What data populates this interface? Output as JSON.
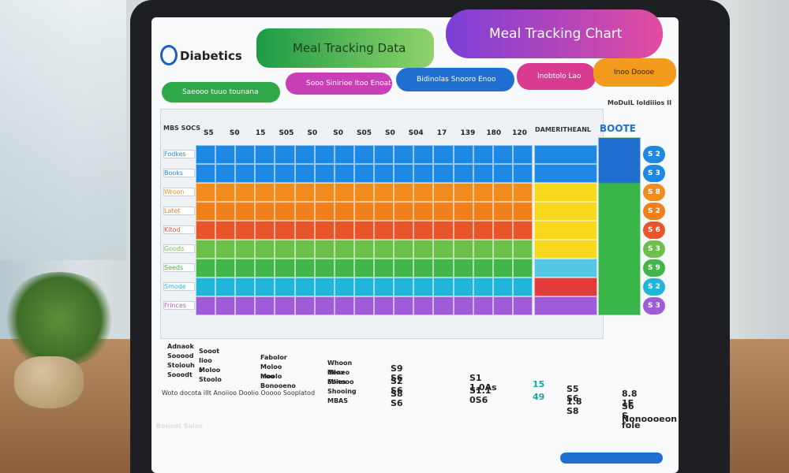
{
  "header": {
    "logo": "Diabetics",
    "tab_data": "Meal Tracking Data",
    "tab_chart": "Meal Tracking Chart",
    "pill_1": "Saeooo tuuo tounana",
    "pill_2": "Sooo Sinirioe Itoo Enoat",
    "pill_3": "Bidinolas Snooro Enoo",
    "pill_4": "Inobtolo Lao",
    "pill_5": "Inoo Doooe",
    "corner_note": "MoDuIL IoIdiiios II"
  },
  "table": {
    "corner": "MBS SOCS",
    "columns": [
      "S5",
      "S0",
      "15",
      "S05",
      "S0",
      "S0",
      "S05",
      "S0",
      "S04",
      "17",
      "139",
      "180",
      "120"
    ],
    "wide_header": "DAMERITHEANL",
    "side_header": "BOOTE",
    "row_labels": [
      "Fodkes",
      "Books",
      "Wroon",
      "Latet",
      "Kitod",
      "Goods",
      "Seeds",
      "Smode",
      "Frinces"
    ],
    "row_colors": [
      "#1e88e5",
      "#1e88e5",
      "#f28c1e",
      "#f07f1c",
      "#e8552a",
      "#6cc04a",
      "#43b649",
      "#1fb6d9",
      "#a05bd8"
    ],
    "wide_colors": [
      "#1e88e5",
      "#1e88e5",
      "#f7d81c",
      "#f7d81c",
      "#f7d81c",
      "#f7d81c",
      "#55c8e6",
      "#e23b3b",
      "#a05bd8"
    ],
    "badges": [
      "S 2",
      "S 3",
      "S 8",
      "S 2",
      "S 6",
      "S 3",
      "S 9",
      "S 2",
      "S 3"
    ]
  },
  "footer": {
    "col_1": [
      "Adnaok",
      "Sooood",
      "Stoiouh",
      "Sooodt"
    ],
    "col_2": [
      "Sooot",
      "Iioo s",
      "Moloo",
      "Stoolo"
    ],
    "col_3": [
      "Fabolor",
      "Moloo Iroo",
      "Moolo",
      "Bonooeno"
    ],
    "col_4": [
      "Whoon Mlox",
      "Beneo Mlies",
      "Sonooo",
      "Shooing MBAS"
    ],
    "nums_1": [
      "S9 S6",
      "S2 S6",
      "S8 S6"
    ],
    "nums_2": [
      "S1 1.0As",
      "S1.1 0S6"
    ],
    "nums_3": [
      "15",
      "49"
    ],
    "nums_4": [
      "S5 S6",
      "1.8 S8"
    ],
    "nums_5": [
      "8.8 1E",
      "S6 S fole",
      "Nonoooeon"
    ],
    "footnote": "Woto docota iIIt Anoiioo Doolio Ooooo Sooplatod",
    "brand": "Bonoot Salas"
  }
}
